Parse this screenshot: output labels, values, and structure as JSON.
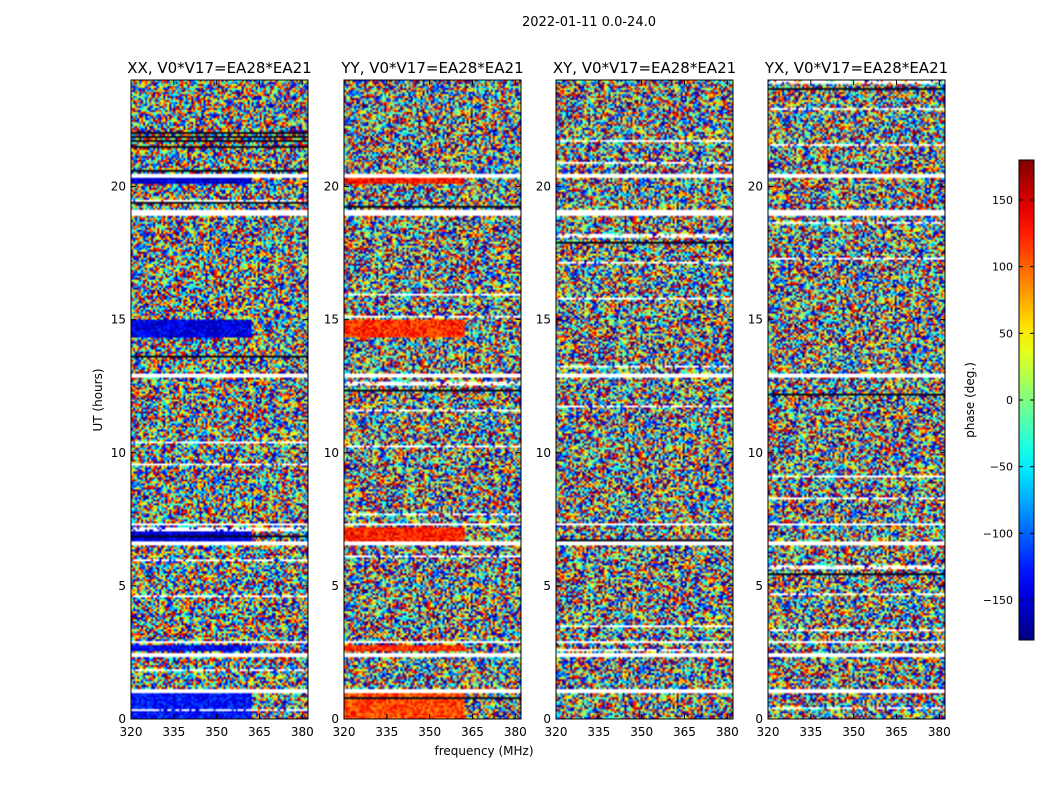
{
  "chart_data": {
    "type": "heatmap",
    "suptitle": "2022-01-11 0.0-24.0",
    "xlabel": "frequency (MHz)",
    "ylabel": "UT (hours)",
    "xlim": [
      320,
      382
    ],
    "ylim": [
      0,
      24
    ],
    "xticks": [
      320,
      335,
      350,
      365,
      380
    ],
    "yticks": [
      0,
      5,
      10,
      15,
      20
    ],
    "panels": [
      {
        "title": "XX, V0*V17=EA28*EA21",
        "pol": "XX"
      },
      {
        "title": "YY, V0*V17=EA28*EA21",
        "pol": "YY"
      },
      {
        "title": "XY, V0*V17=EA28*EA21",
        "pol": "XY"
      },
      {
        "title": "YX, V0*V17=EA28*EA21",
        "pol": "YX"
      }
    ],
    "colorbar": {
      "label": "phase (deg.)",
      "vmin": -180,
      "vmax": 180,
      "ticks": [
        -150,
        -100,
        -50,
        0,
        50,
        100,
        150
      ],
      "colormap": "jet"
    },
    "flagged_ut_ranges": [
      [
        1.0,
        1.1
      ],
      [
        2.35,
        2.5
      ],
      [
        2.85,
        2.95
      ],
      [
        6.55,
        6.7
      ],
      [
        7.25,
        7.35
      ],
      [
        12.8,
        12.95
      ],
      [
        18.9,
        19.1
      ],
      [
        20.35,
        20.5
      ]
    ],
    "coherent_bands": [
      {
        "ut": [
          0.0,
          1.0
        ],
        "freq": [
          320,
          362
        ],
        "XX_phase": -130,
        "YY_phase": 110
      },
      {
        "ut": [
          2.55,
          2.8
        ],
        "freq": [
          320,
          362
        ],
        "XX_phase": -140,
        "YY_phase": 120
      },
      {
        "ut": [
          6.7,
          7.2
        ],
        "freq": [
          320,
          362
        ],
        "XX_phase": -150,
        "YY_phase": 125
      },
      {
        "ut": [
          14.3,
          15.0
        ],
        "freq": [
          320,
          362
        ],
        "XX_phase": -145,
        "YY_phase": 120
      },
      {
        "ut": [
          20.1,
          20.35
        ],
        "freq": [
          320,
          362
        ],
        "XX_phase": -150,
        "YY_phase": 130
      }
    ]
  }
}
